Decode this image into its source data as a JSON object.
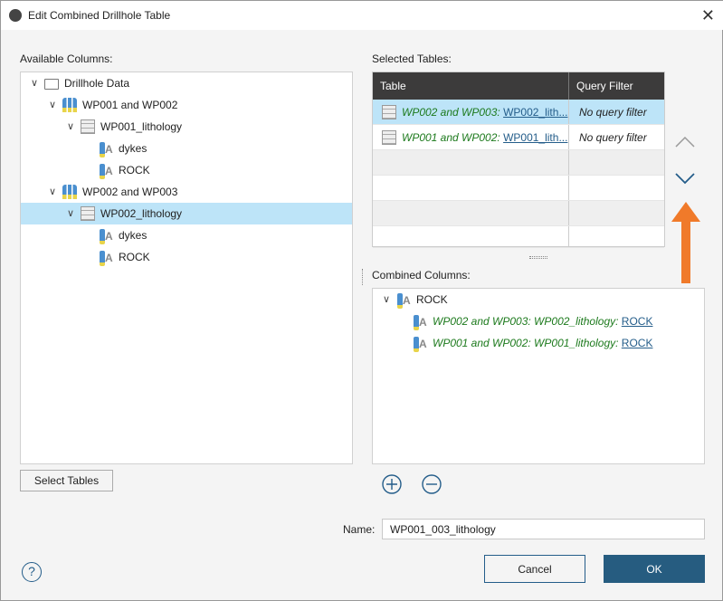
{
  "window": {
    "title": "Edit Combined Drillhole Table",
    "close_icon": "close-icon"
  },
  "available": {
    "label": "Available Columns:",
    "tree": [
      {
        "label": "Drillhole Data",
        "icon": "folder-icon",
        "level": 0
      },
      {
        "label": "WP001 and WP002",
        "icon": "drillhole-set-icon",
        "level": 1
      },
      {
        "label": "WP001_lithology",
        "icon": "table-icon",
        "level": 2
      },
      {
        "label": "dykes",
        "icon": "category-column-icon",
        "level": 3
      },
      {
        "label": "ROCK",
        "icon": "category-column-icon",
        "level": 3
      },
      {
        "label": "WP002 and WP003",
        "icon": "drillhole-set-icon",
        "level": 1
      },
      {
        "label": "WP002_lithology",
        "icon": "table-icon",
        "level": 2,
        "selected": true
      },
      {
        "label": "dykes",
        "icon": "category-column-icon",
        "level": 3
      },
      {
        "label": "ROCK",
        "icon": "category-column-icon",
        "level": 3
      }
    ]
  },
  "select_tables_button": "Select Tables",
  "selected_tables": {
    "label": "Selected Tables:",
    "headers": [
      "Table",
      "Query Filter"
    ],
    "rows": [
      {
        "set": "WP002 and WP003",
        "table": "WP002_lith...",
        "filter": "No query filter",
        "selected": true
      },
      {
        "set": "WP001 and WP002",
        "table": "WP001_lith...",
        "filter": "No query filter"
      }
    ]
  },
  "combined": {
    "label": "Combined Columns:",
    "root": "ROCK",
    "children": [
      {
        "prefix": "WP002 and WP003: WP002_lithology",
        "col": "ROCK"
      },
      {
        "prefix": "WP001 and WP002: WP001_lithology",
        "col": "ROCK"
      }
    ]
  },
  "name": {
    "label": "Name:",
    "value": "WP001_003_lithology"
  },
  "buttons": {
    "cancel": "Cancel",
    "ok": "OK"
  },
  "colors": {
    "ok": "#265c80",
    "selection": "#bde4f8",
    "arrow": "#f07a2a",
    "header": "#3c3b3b"
  }
}
